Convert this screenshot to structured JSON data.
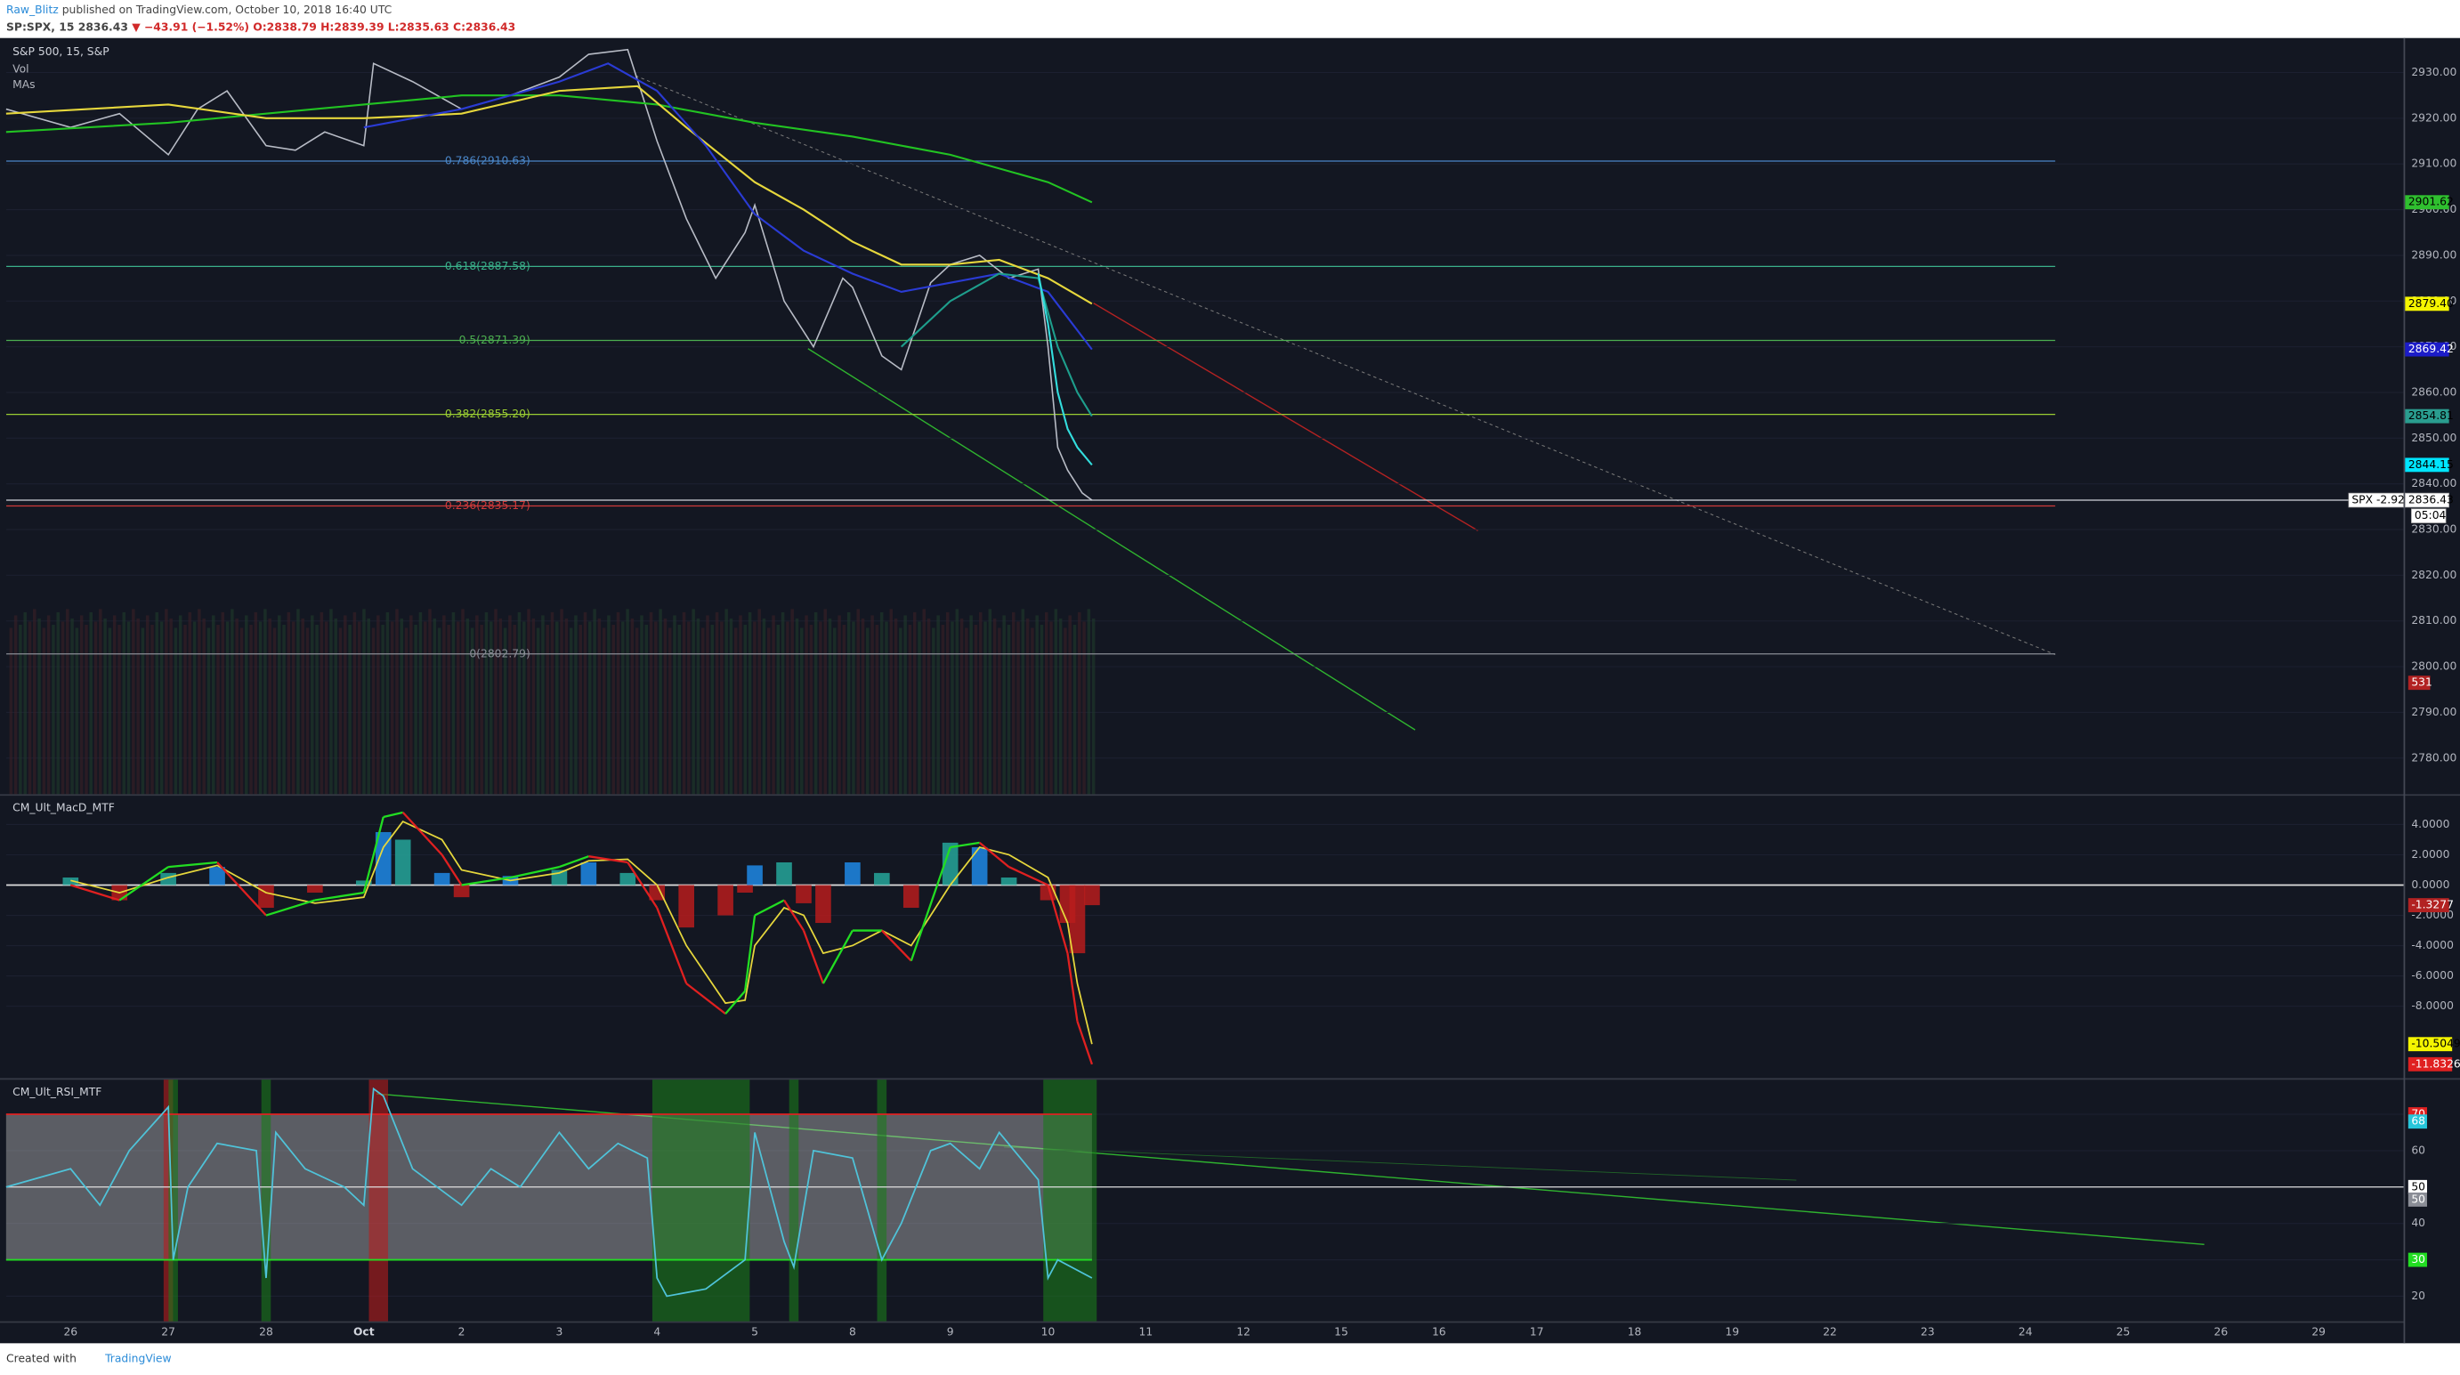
{
  "header": {
    "author": "Raw_Blitz",
    "published": "published on TradingView.com, October 10, 2018 16:40 UTC",
    "symbol": "SP:SPX, 15",
    "last": "2836.43",
    "change": "▼ −43.91 (−1.52%)",
    "ohlc": "O:2838.79 H:2839.39 L:2835.63 C:2836.43"
  },
  "footer": {
    "created": "Created with",
    "brand": "TradingView"
  },
  "chart_data": [
    {
      "type": "price",
      "title": "S&P 500, 15, S&P",
      "labels": [
        "Vol",
        "MAs"
      ],
      "categories": [
        "26",
        "27",
        "28",
        "Oct",
        "2",
        "3",
        "4",
        "5",
        "8",
        "9",
        "10",
        "11",
        "12",
        "15",
        "16",
        "17",
        "18",
        "19",
        "22",
        "23",
        "24",
        "25",
        "26",
        "29"
      ],
      "ylim": [
        2772.1,
        2937.21
      ],
      "yticks": [
        {
          "value": 2780,
          "label": "2780.00"
        },
        {
          "value": 2790,
          "label": "2790.00"
        },
        {
          "value": 2800,
          "label": "2800.00"
        },
        {
          "value": 2810,
          "label": "2810.00"
        },
        {
          "value": 2820,
          "label": "2820.00"
        },
        {
          "value": 2830,
          "label": "2830.00"
        },
        {
          "value": 2840,
          "label": "2840.00"
        },
        {
          "value": 2850,
          "label": "2850.00"
        },
        {
          "value": 2860,
          "label": "2860.00"
        },
        {
          "value": 2870,
          "label": "2870.00"
        },
        {
          "value": 2880,
          "label": "2880.00"
        },
        {
          "value": 2890,
          "label": "2890.00"
        },
        {
          "value": 2900,
          "label": "2900.00"
        },
        {
          "value": 2910,
          "label": "2910.00"
        },
        {
          "value": 2920,
          "label": "2920.00"
        },
        {
          "value": 2930,
          "label": "2930.00"
        }
      ],
      "series": [
        {
          "color": "#b8bcc6",
          "x": [
            -0.66,
            0,
            0.5,
            1,
            1.3,
            1.6,
            2,
            2.3,
            2.6,
            3,
            3.1,
            3.5,
            4,
            4.5,
            5,
            5.3,
            5.7,
            6,
            6.3,
            6.6,
            6.9,
            7,
            7.3,
            7.6,
            7.9,
            8,
            8.3,
            8.5,
            8.8,
            9,
            9.3,
            9.6,
            9.9,
            10,
            10.1,
            10.2,
            10.35,
            10.45
          ],
          "values": [
            2922,
            2918,
            2921,
            2912,
            2922,
            2926,
            2914,
            2913,
            2917,
            2914,
            2932,
            2928,
            2922,
            2925,
            2929,
            2934,
            2935,
            2915,
            2898,
            2885,
            2895,
            2901,
            2880,
            2870,
            2885,
            2883,
            2868,
            2865,
            2884,
            2888,
            2890,
            2885,
            2887,
            2870,
            2848,
            2843,
            2838,
            2836.43
          ]
        },
        {
          "color": "#22c322",
          "label_color": "#2fbf2f",
          "x": [
            -0.66,
            1,
            3,
            4,
            5,
            6,
            6.5,
            7,
            8,
            9,
            10,
            10.45
          ],
          "values": [
            2917,
            2919,
            2923,
            2925,
            2925,
            2923,
            2921,
            2919,
            2916,
            2912,
            2906,
            2901.62
          ],
          "last_label": "2901.62"
        },
        {
          "color": "#e6d73c",
          "label_color": "#f5f500",
          "x": [
            -0.66,
            1,
            2,
            3,
            4,
            5,
            5.8,
            6.3,
            7,
            7.5,
            8,
            8.5,
            9,
            9.5,
            10,
            10.45
          ],
          "values": [
            2921,
            2923,
            2920,
            2920,
            2921,
            2926,
            2927,
            2918,
            2906,
            2900,
            2893,
            2888,
            2888,
            2889,
            2885,
            2879.4
          ],
          "last_label": "2879.40"
        },
        {
          "color": "#2a3bd4",
          "label_color": "#1c1cc8",
          "x": [
            3,
            4,
            5,
            5.5,
            6,
            6.5,
            7,
            7.5,
            8,
            8.5,
            9,
            9.5,
            10,
            10.45
          ],
          "values": [
            2918,
            2922,
            2928,
            2932,
            2926,
            2914,
            2899,
            2891,
            2886,
            2882,
            2884,
            2886,
            2882,
            2869.42
          ],
          "last_label": "2869.42"
        },
        {
          "color": "#1e9e8c",
          "label_color": "#2a9d8f",
          "x": [
            8.5,
            9,
            9.5,
            9.9,
            10.1,
            10.3,
            10.45
          ],
          "values": [
            2870,
            2880,
            2886,
            2885,
            2870,
            2860,
            2854.81
          ],
          "last_label": "2854.81"
        },
        {
          "color": "#33dddd",
          "label_color": "#00e5ff",
          "x": [
            9.9,
            10,
            10.1,
            10.2,
            10.3,
            10.45
          ],
          "values": [
            2886,
            2875,
            2860,
            2852,
            2848,
            2844.15
          ],
          "last_label": "2844.15"
        }
      ],
      "fib": [
        {
          "label": "0.786(2910.63)",
          "value": 2910.63,
          "color": "#4a86c8"
        },
        {
          "label": "0.618(2887.58)",
          "value": 2887.58,
          "color": "#3ab08a"
        },
        {
          "label": "0.5(2871.39)",
          "value": 2871.39,
          "color": "#4caf50"
        },
        {
          "label": "0.382(2855.20)",
          "value": 2855.2,
          "color": "#9acd32"
        },
        {
          "label": "0.236(2835.17)",
          "value": 2835.17,
          "color": "#d03a3a"
        },
        {
          "label": "0(2802.79)",
          "value": 2802.79,
          "color": "#8a8d96"
        }
      ],
      "last": {
        "label": "SPX -2.92%",
        "value": 2836.43,
        "countdown": "05:04"
      },
      "volume_label": 531
    },
    {
      "type": "macd",
      "title": "CM_Ult_MacD_MTF",
      "ylim": [
        -12.75,
        5.9
      ],
      "yticks": [
        {
          "value": 4,
          "label": "4.0000"
        },
        {
          "value": 2,
          "label": "2.0000"
        },
        {
          "value": 0,
          "label": "0.0000"
        },
        {
          "value": -2,
          "label": "-2.0000"
        },
        {
          "value": -4,
          "label": "-4.0000"
        },
        {
          "value": -6,
          "label": "-6.0000"
        },
        {
          "value": -8,
          "label": "-8.0000"
        }
      ],
      "x": [
        0,
        0.5,
        1,
        1.5,
        2,
        2.5,
        3,
        3.2,
        3.4,
        3.8,
        4,
        4.5,
        5,
        5.3,
        5.7,
        6,
        6.3,
        6.7,
        6.9,
        7,
        7.3,
        7.5,
        7.7,
        8,
        8.3,
        8.6,
        9,
        9.3,
        9.6,
        10,
        10.2,
        10.3,
        10.45
      ],
      "macd": [
        0,
        -1,
        1.2,
        1.5,
        -2,
        -1,
        -0.5,
        4.5,
        4.8,
        2,
        0,
        0.5,
        1.2,
        1.9,
        1.5,
        -1.5,
        -6.5,
        -8.5,
        -7,
        -2,
        -1,
        -3,
        -6.5,
        -3,
        -3,
        -5,
        2.5,
        2.8,
        1.2,
        0,
        -4.5,
        -9,
        -11.8326
      ],
      "signal": [
        0.3,
        -0.5,
        0.5,
        1.3,
        -0.5,
        -1.2,
        -0.8,
        2.5,
        4.2,
        3,
        1,
        0.3,
        0.8,
        1.6,
        1.7,
        0,
        -4,
        -7.8,
        -7.6,
        -4,
        -1.5,
        -2,
        -4.5,
        -4,
        -3,
        -4,
        0,
        2.5,
        2,
        0.5,
        -2.5,
        -6.5,
        -10.5049
      ],
      "histogram": [
        0.5,
        -1,
        0.8,
        1.2,
        -1.5,
        -0.5,
        0.3,
        3.5,
        3,
        0.8,
        -0.8,
        0.6,
        1,
        1.5,
        0.8,
        -1,
        -2.8,
        -2,
        -0.5,
        1.3,
        1.5,
        -1.2,
        -2.5,
        1.5,
        0.8,
        -1.5,
        2.8,
        2.5,
        0.5,
        -1,
        -2.5,
        -4.5,
        -1.3277
      ]
    },
    {
      "type": "rsi",
      "title": "CM_Ult_RSI_MTF",
      "ylim": [
        13.1,
        79.5
      ],
      "yticks": [
        20,
        30,
        40,
        50,
        60,
        70
      ],
      "bands": {
        "upper": 70,
        "middle": 50,
        "lower": 30
      },
      "x": [
        -0.66,
        0,
        0.3,
        0.6,
        1,
        1.05,
        1.2,
        1.5,
        1.9,
        2,
        2.1,
        2.4,
        2.8,
        3,
        3.1,
        3.2,
        3.5,
        4,
        4.3,
        4.6,
        5,
        5.3,
        5.6,
        5.9,
        6,
        6.1,
        6.5,
        6.9,
        7,
        7.3,
        7.4,
        7.6,
        8,
        8.3,
        8.5,
        8.8,
        9,
        9.3,
        9.5,
        9.9,
        10,
        10.1,
        10.45
      ],
      "values": [
        50,
        55,
        45,
        60,
        72,
        30,
        50,
        62,
        60,
        25,
        65,
        55,
        50,
        45,
        77,
        75,
        55,
        45,
        55,
        50,
        65,
        55,
        62,
        58,
        25,
        20,
        22,
        30,
        65,
        35,
        28,
        60,
        58,
        30,
        40,
        60,
        62,
        55,
        65,
        52,
        25,
        30,
        25
      ],
      "right_labels": [
        {
          "value": 68,
          "color": "#26c6da"
        },
        {
          "value": 50,
          "color": "#8a8d96"
        }
      ]
    }
  ]
}
